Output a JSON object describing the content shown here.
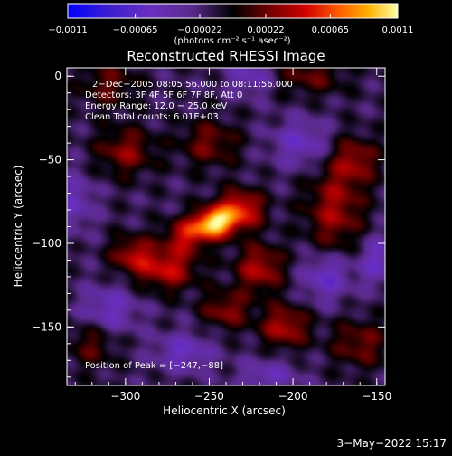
{
  "chart_data": {
    "type": "heatmap",
    "title": "Reconstructed RHESSI Image",
    "xlabel": "Heliocentric X (arcsec)",
    "ylabel": "Heliocentric Y (arcsec)",
    "xlim": [
      -335,
      -145
    ],
    "ylim": [
      -185,
      5
    ],
    "x_ticks": [
      -300,
      -250,
      -200,
      -150
    ],
    "x_tick_labels": [
      "−300",
      "−250",
      "−200",
      "−150"
    ],
    "y_ticks": [
      0,
      -50,
      -100,
      -150
    ],
    "y_tick_labels": [
      "0",
      "−50",
      "−100",
      "−150"
    ],
    "colorbar": {
      "min": -0.0011,
      "max": 0.0011,
      "ticks": [
        -0.0011,
        -0.00065,
        -0.00022,
        0.00022,
        0.00065,
        0.0011
      ],
      "tick_labels": [
        "−0.0011",
        "−0.00065",
        "−0.00022",
        "0.00022",
        "0.00065",
        "0.0011"
      ],
      "unit_label": "(photons cm⁻² s⁻¹ asec⁻²)"
    },
    "annotations": [
      "2−Dec−2005 08:05:56.000 to 08:11:56.000",
      "Detectors: 3F 4F 5F 6F 7F 8F, Att 0",
      "Energy Range: 12.0 − 25.0 keV",
      "Clean     Total counts: 6.01E+03"
    ],
    "peak_label": "Position of Peak = [−247,−88]",
    "peak": [
      -247,
      -88
    ],
    "sources": [
      {
        "x": -247,
        "y": -88,
        "amp": 1.0,
        "sx": 8,
        "sy": 6
      },
      {
        "x": -232,
        "y": -80,
        "amp": 0.7,
        "sx": 10,
        "sy": 8
      },
      {
        "x": -263,
        "y": -95,
        "amp": 0.55,
        "sx": 9,
        "sy": 7
      },
      {
        "x": -275,
        "y": -115,
        "amp": 0.55,
        "sx": 12,
        "sy": 9
      },
      {
        "x": -296,
        "y": -107,
        "amp": 0.45,
        "sx": 9,
        "sy": 8
      },
      {
        "x": -220,
        "y": -115,
        "amp": 0.5,
        "sx": 10,
        "sy": 10
      },
      {
        "x": -205,
        "y": -150,
        "amp": 0.5,
        "sx": 10,
        "sy": 9
      },
      {
        "x": -240,
        "y": -140,
        "amp": 0.4,
        "sx": 10,
        "sy": 8
      },
      {
        "x": -175,
        "y": -80,
        "amp": 0.45,
        "sx": 12,
        "sy": 18
      },
      {
        "x": -163,
        "y": -50,
        "amp": 0.4,
        "sx": 10,
        "sy": 10
      },
      {
        "x": -300,
        "y": -45,
        "amp": 0.4,
        "sx": 12,
        "sy": 10
      },
      {
        "x": -250,
        "y": -40,
        "amp": 0.35,
        "sx": 12,
        "sy": 10
      },
      {
        "x": -160,
        "y": -160,
        "amp": 0.35,
        "sx": 12,
        "sy": 10
      },
      {
        "x": -190,
        "y": 0,
        "amp": 0.3,
        "sx": 15,
        "sy": 8
      },
      {
        "x": -320,
        "y": -160,
        "amp": 0.3,
        "sx": 10,
        "sy": 10
      },
      {
        "x": -310,
        "y": -5,
        "amp": 0.3,
        "sx": 12,
        "sy": 10
      },
      {
        "x": -310,
        "y": -140,
        "amp": -0.35,
        "sx": 12,
        "sy": 10
      },
      {
        "x": -180,
        "y": -120,
        "amp": -0.4,
        "sx": 10,
        "sy": 10
      },
      {
        "x": -150,
        "y": -110,
        "amp": -0.35,
        "sx": 8,
        "sy": 10
      },
      {
        "x": -195,
        "y": -40,
        "amp": -0.35,
        "sx": 12,
        "sy": 10
      },
      {
        "x": -265,
        "y": -165,
        "amp": -0.35,
        "sx": 12,
        "sy": 8
      },
      {
        "x": -215,
        "y": -180,
        "amp": -0.3,
        "sx": 12,
        "sy": 8
      },
      {
        "x": -330,
        "y": -75,
        "amp": -0.3,
        "sx": 8,
        "sy": 12
      },
      {
        "x": -225,
        "y": 0,
        "amp": -0.3,
        "sx": 10,
        "sy": 8
      }
    ]
  },
  "footer": {
    "timestamp": "3−May−2022 15:17"
  }
}
